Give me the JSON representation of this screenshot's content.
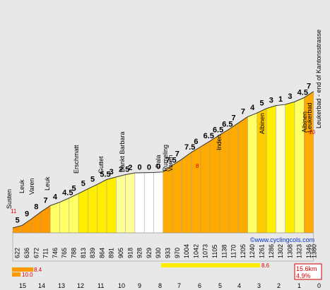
{
  "chart_data": {
    "type": "area",
    "title": "",
    "xlabel": "",
    "ylabel": "",
    "route": {
      "start": "Susten",
      "end": "Leukerbad - end of Kantonsstrasse"
    },
    "x_ticks": [
      "15",
      "14",
      "13",
      "12",
      "11",
      "10",
      "9",
      "8",
      "7",
      "6",
      "5",
      "4",
      "3",
      "2",
      "1",
      "0"
    ],
    "segments": [
      {
        "gradient": "5",
        "elevation": "622",
        "color": "#ff9900"
      },
      {
        "gradient": "9",
        "elevation": "636",
        "color": "#ff9900"
      },
      {
        "gradient": "8",
        "elevation": "672",
        "color": "#ff9900"
      },
      {
        "gradient": "7",
        "elevation": "711",
        "color": "#ff9900"
      },
      {
        "gradient": "4",
        "elevation": "746",
        "color": "#ffff66"
      },
      {
        "gradient": "4.5",
        "elevation": "765",
        "color": "#ffff66"
      },
      {
        "gradient": "5",
        "elevation": "788",
        "color": "#ffff66"
      },
      {
        "gradient": "5",
        "elevation": "813",
        "color": "#ffee00"
      },
      {
        "gradient": "5",
        "elevation": "839",
        "color": "#ffee00"
      },
      {
        "gradient": "5.5",
        "elevation": "864",
        "color": "#ffee00"
      },
      {
        "gradient": "3",
        "elevation": "891",
        "color": "#ffee00"
      },
      {
        "gradient": "2.5",
        "elevation": "905",
        "color": "#ffff99"
      },
      {
        "gradient": "2",
        "elevation": "918",
        "color": "#ffff99"
      },
      {
        "gradient": "0",
        "elevation": "928",
        "color": "#ffffff"
      },
      {
        "gradient": "0",
        "elevation": "929",
        "color": "#ffffff"
      },
      {
        "gradient": "0",
        "elevation": "930",
        "color": "#ffffff"
      },
      {
        "gradient": "7.5",
        "elevation": "933",
        "color": "#ffaa00"
      },
      {
        "gradient": "7",
        "elevation": "970",
        "color": "#ffaa00"
      },
      {
        "gradient": "7.5",
        "elevation": "1004",
        "color": "#ffaa00"
      },
      {
        "gradient": "6",
        "elevation": "1042",
        "color": "#ffaa00"
      },
      {
        "gradient": "6.5",
        "elevation": "1073",
        "color": "#ffaa00"
      },
      {
        "gradient": "6.5",
        "elevation": "1105",
        "color": "#ffaa00"
      },
      {
        "gradient": "6.5",
        "elevation": "1138",
        "color": "#ffaa00"
      },
      {
        "gradient": "7",
        "elevation": "1170",
        "color": "#ffaa00"
      },
      {
        "gradient": "7",
        "elevation": "1205",
        "color": "#ffaa00"
      },
      {
        "gradient": "4",
        "elevation": "1240",
        "color": "#ffff66"
      },
      {
        "gradient": "5",
        "elevation": "1261",
        "color": "#ffcc00"
      },
      {
        "gradient": "3",
        "elevation": "1286",
        "color": "#ffee00"
      },
      {
        "gradient": "1",
        "elevation": "1302",
        "color": "#ffffcc"
      },
      {
        "gradient": "3",
        "elevation": "1308",
        "color": "#ffee00"
      },
      {
        "gradient": "4.5",
        "elevation": "1323",
        "color": "#ffff66"
      },
      {
        "gradient": "7",
        "elevation": "1346",
        "color": "#ffaa00"
      }
    ],
    "end_elevation": "1380",
    "places": [
      "Susten",
      "Leuk",
      "Varen",
      "Leuk",
      "Erschmatt",
      "Guttet",
      "Sankt Barbara",
      "Dala",
      "Rumeling",
      "Varen",
      "Inden",
      "Albinen",
      "Albinen",
      "Leukerbad",
      "Leukerbad - end of Kantonsstrasse"
    ],
    "max_markers": [
      "11",
      "8",
      "10"
    ],
    "legend": [
      {
        "value": "8.4",
        "color": "#ff9900"
      },
      {
        "value": "10.0",
        "color": "#ff9900"
      },
      {
        "value": "8.6",
        "color": "#ffee00"
      }
    ],
    "summary": {
      "distance": "15.6km",
      "avg_gradient": "4.9%"
    },
    "credit": "©www.cyclingcols.com"
  }
}
